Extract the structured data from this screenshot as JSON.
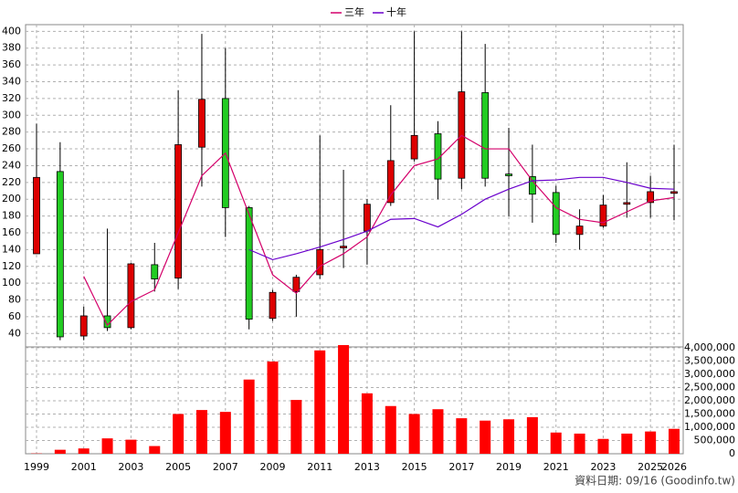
{
  "chart_data": {
    "type": "candlestick",
    "categories": [
      "1999",
      null,
      "2001",
      null,
      "2003",
      null,
      "2005",
      null,
      "2007",
      null,
      "2009",
      null,
      "2011",
      null,
      "2013",
      null,
      "2015",
      null,
      "2017",
      null,
      "2019",
      null,
      "2021",
      null,
      "2023",
      null,
      "2025",
      "2026"
    ],
    "open": [
      135,
      233,
      37,
      61,
      47,
      122,
      106,
      262,
      320,
      190,
      58,
      90,
      110,
      142,
      162,
      196,
      248,
      278,
      225,
      327,
      230,
      227,
      208,
      158,
      168,
      194,
      196,
      207
    ],
    "close": [
      226,
      36,
      61,
      47,
      123,
      105,
      265,
      319,
      190,
      57,
      89,
      107,
      140,
      144,
      194,
      246,
      276,
      224,
      328,
      225,
      228,
      206,
      158,
      168,
      193,
      196,
      209,
      209
    ],
    "high": [
      290,
      268,
      72,
      165,
      124,
      148,
      330,
      397,
      380,
      192,
      92,
      110,
      276,
      235,
      200,
      312,
      400,
      293,
      400,
      385,
      285,
      265,
      216,
      188,
      205,
      244,
      228,
      265
    ],
    "low": [
      135,
      32,
      32,
      43,
      45,
      90,
      93,
      215,
      155,
      45,
      55,
      60,
      105,
      118,
      122,
      192,
      245,
      200,
      212,
      215,
      180,
      172,
      148,
      140,
      166,
      178,
      178,
      175
    ],
    "up_color": "#dd0000",
    "down_color": "#22cc22",
    "lines": [
      {
        "name": "三年",
        "color": "#d4006a",
        "values": [
          null,
          null,
          108,
          50,
          78,
          92,
          160,
          228,
          255,
          182,
          110,
          88,
          120,
          135,
          155,
          205,
          240,
          248,
          276,
          260,
          260,
          222,
          190,
          176,
          172,
          185,
          198,
          202
        ]
      },
      {
        "name": "十年",
        "color": "#6a00cc",
        "values": [
          null,
          null,
          null,
          null,
          null,
          null,
          null,
          null,
          null,
          140,
          128,
          135,
          143,
          152,
          162,
          176,
          177,
          167,
          182,
          200,
          212,
          222,
          223,
          226,
          226,
          220,
          213,
          212
        ]
      }
    ],
    "ylim": [
      24,
      408
    ],
    "yticks": [
      40,
      60,
      80,
      100,
      120,
      140,
      160,
      180,
      200,
      220,
      240,
      260,
      280,
      300,
      320,
      340,
      360,
      380,
      400
    ],
    "volume": [
      10000,
      150000,
      200000,
      580000,
      530000,
      290000,
      1500000,
      1650000,
      1580000,
      2800000,
      3480000,
      2030000,
      3900000,
      4100000,
      2280000,
      1800000,
      1500000,
      1680000,
      1340000,
      1250000,
      1300000,
      1380000,
      800000,
      760000,
      560000,
      760000,
      840000,
      940000
    ],
    "volume_color": "#ff0000",
    "y2lim": [
      0,
      4100000
    ],
    "y2ticks": [
      0,
      {
        "value": 500000,
        "label": "500,000"
      },
      {
        "value": 1000000,
        "label": "1,000,000"
      },
      {
        "value": 1500000,
        "label": "1,500,000"
      },
      {
        "value": 2000000,
        "label": "2,000,000"
      },
      {
        "value": 2500000,
        "label": "2,500,000"
      },
      {
        "value": 3000000,
        "label": "3,000,000"
      },
      {
        "value": 3500000,
        "label": "3,500,000"
      },
      {
        "value": 4000000,
        "label": "4,000,000"
      }
    ],
    "grid": true,
    "footer": "資料日期: 09/16 (Goodinfo.tw)"
  }
}
